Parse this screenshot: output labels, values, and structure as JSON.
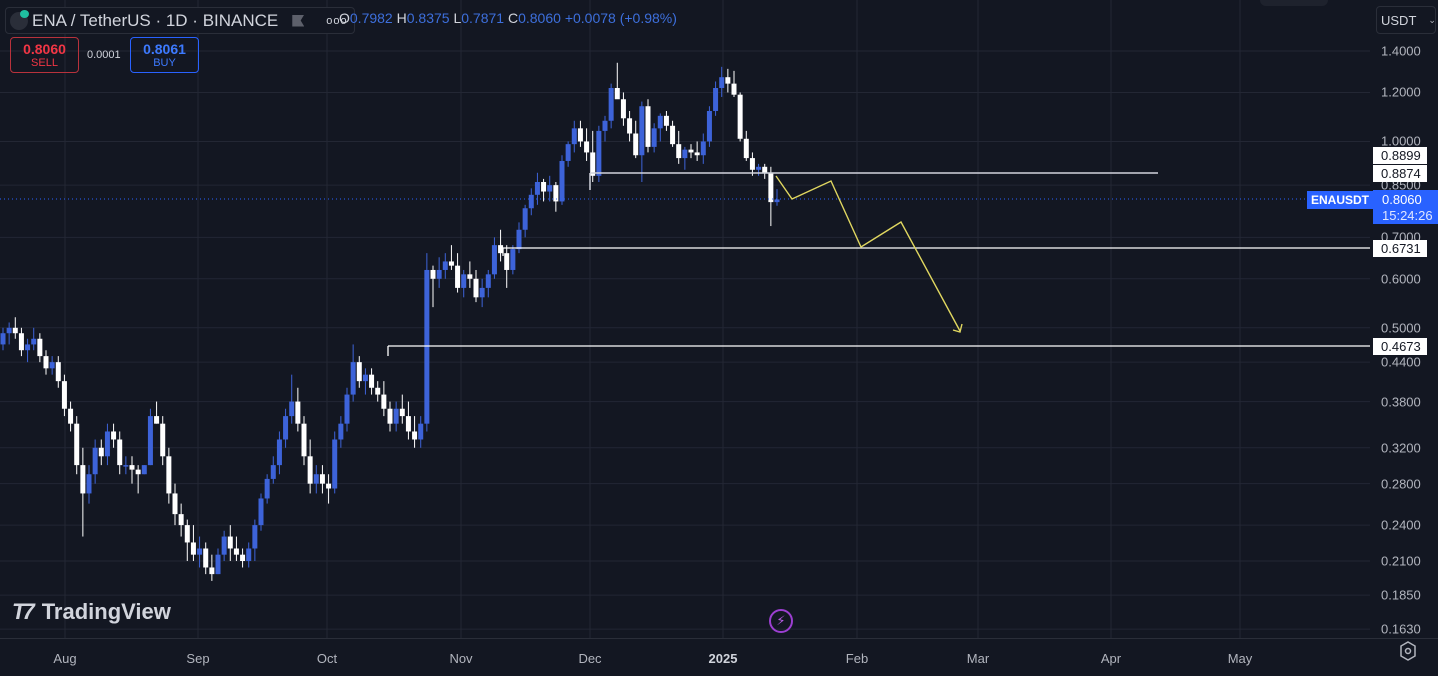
{
  "header": {
    "symbol_title": "ENA / TetherUS · 1D · BINANCE",
    "more_label": "ooo",
    "ohlc": {
      "o_label": "O",
      "o": "0.7982",
      "h_label": "H",
      "h": "0.8375",
      "l_label": "L",
      "l": "0.7871",
      "c_label": "C",
      "c": "0.8060",
      "change": "+0.0078 (+0.98%)"
    }
  },
  "trade": {
    "sell_price": "0.8060",
    "sell_label": "SELL",
    "spread": "0.0001",
    "buy_price": "0.8061",
    "buy_label": "BUY"
  },
  "currency_select": {
    "value": "USDT"
  },
  "price_labels": {
    "level_1": "0.8899",
    "level_2": "0.8874",
    "level_3": "0.6731",
    "level_4": "0.4673",
    "symbol_tag": "ENAUSDT",
    "last_price": "0.8060",
    "countdown": "15:24:26"
  },
  "watermark": "TradingView",
  "colors": {
    "up": "#3d63d9",
    "down": "#ffffff",
    "background": "#131722",
    "grid": "#232734",
    "projection": "#e0d760",
    "last_price": "#2962ff"
  },
  "chart_data": {
    "type": "candlestick",
    "title": "ENA / TetherUS · 1D · BINANCE",
    "scale": "log",
    "ylim": [
      0.163,
      1.4
    ],
    "y_ticks": [
      "1.4000",
      "1.2000",
      "1.0000",
      "0.8500",
      "0.7000",
      "0.6000",
      "0.5000",
      "0.4400",
      "0.3800",
      "0.3200",
      "0.2800",
      "0.2400",
      "0.2100",
      "0.1850",
      "0.1630"
    ],
    "x_ticks": [
      "Aug",
      "Sep",
      "Oct",
      "Nov",
      "Dec",
      "2025",
      "Feb",
      "Mar",
      "Apr",
      "May"
    ],
    "horizontal_levels": [
      {
        "price": 0.8874,
        "label": "0.8874",
        "from": "2024-11-30"
      },
      {
        "price": 0.6731,
        "label": "0.6731",
        "from": "2024-11-10"
      },
      {
        "price": 0.4673,
        "label": "0.4673",
        "from": "2024-10-14"
      }
    ],
    "projection_path": [
      [
        0.8874,
        "2025-01-14"
      ],
      [
        0.8,
        "2025-01-17"
      ],
      [
        0.86,
        "2025-01-26"
      ],
      [
        0.67,
        "2025-02-01"
      ],
      [
        0.73,
        "2025-02-10"
      ],
      [
        0.49,
        "2025-02-26"
      ]
    ],
    "candles": [
      [
        0.47,
        0.5,
        0.46,
        0.49
      ],
      [
        0.49,
        0.51,
        0.47,
        0.5
      ],
      [
        0.5,
        0.52,
        0.48,
        0.49
      ],
      [
        0.49,
        0.5,
        0.45,
        0.46
      ],
      [
        0.46,
        0.48,
        0.44,
        0.47
      ],
      [
        0.47,
        0.5,
        0.46,
        0.48
      ],
      [
        0.48,
        0.49,
        0.44,
        0.45
      ],
      [
        0.45,
        0.46,
        0.42,
        0.43
      ],
      [
        0.43,
        0.45,
        0.42,
        0.44
      ],
      [
        0.44,
        0.45,
        0.4,
        0.41
      ],
      [
        0.41,
        0.42,
        0.36,
        0.37
      ],
      [
        0.37,
        0.38,
        0.34,
        0.35
      ],
      [
        0.35,
        0.36,
        0.29,
        0.3
      ],
      [
        0.3,
        0.32,
        0.23,
        0.27
      ],
      [
        0.27,
        0.3,
        0.26,
        0.29
      ],
      [
        0.29,
        0.33,
        0.28,
        0.32
      ],
      [
        0.32,
        0.33,
        0.3,
        0.31
      ],
      [
        0.31,
        0.35,
        0.3,
        0.34
      ],
      [
        0.34,
        0.35,
        0.32,
        0.33
      ],
      [
        0.33,
        0.34,
        0.29,
        0.3
      ],
      [
        0.3,
        0.31,
        0.29,
        0.3
      ],
      [
        0.3,
        0.31,
        0.28,
        0.295
      ],
      [
        0.295,
        0.3,
        0.27,
        0.29
      ],
      [
        0.29,
        0.3,
        0.29,
        0.3
      ],
      [
        0.3,
        0.37,
        0.3,
        0.36
      ],
      [
        0.36,
        0.38,
        0.35,
        0.35
      ],
      [
        0.35,
        0.36,
        0.3,
        0.31
      ],
      [
        0.31,
        0.32,
        0.26,
        0.27
      ],
      [
        0.27,
        0.28,
        0.24,
        0.25
      ],
      [
        0.25,
        0.26,
        0.23,
        0.24
      ],
      [
        0.24,
        0.245,
        0.21,
        0.225
      ],
      [
        0.225,
        0.24,
        0.21,
        0.215
      ],
      [
        0.215,
        0.23,
        0.205,
        0.22
      ],
      [
        0.22,
        0.225,
        0.2,
        0.205
      ],
      [
        0.205,
        0.215,
        0.195,
        0.2
      ],
      [
        0.2,
        0.22,
        0.2,
        0.215
      ],
      [
        0.215,
        0.235,
        0.21,
        0.23
      ],
      [
        0.23,
        0.24,
        0.21,
        0.22
      ],
      [
        0.22,
        0.23,
        0.21,
        0.215
      ],
      [
        0.215,
        0.22,
        0.205,
        0.21
      ],
      [
        0.21,
        0.225,
        0.205,
        0.22
      ],
      [
        0.22,
        0.245,
        0.21,
        0.24
      ],
      [
        0.24,
        0.27,
        0.235,
        0.265
      ],
      [
        0.265,
        0.29,
        0.26,
        0.285
      ],
      [
        0.285,
        0.31,
        0.28,
        0.3
      ],
      [
        0.3,
        0.34,
        0.29,
        0.33
      ],
      [
        0.33,
        0.37,
        0.32,
        0.36
      ],
      [
        0.36,
        0.42,
        0.35,
        0.38
      ],
      [
        0.38,
        0.4,
        0.34,
        0.35
      ],
      [
        0.35,
        0.36,
        0.3,
        0.31
      ],
      [
        0.31,
        0.33,
        0.27,
        0.28
      ],
      [
        0.28,
        0.3,
        0.27,
        0.29
      ],
      [
        0.29,
        0.3,
        0.27,
        0.28
      ],
      [
        0.28,
        0.29,
        0.26,
        0.275
      ],
      [
        0.275,
        0.34,
        0.27,
        0.33
      ],
      [
        0.33,
        0.36,
        0.32,
        0.35
      ],
      [
        0.35,
        0.4,
        0.34,
        0.39
      ],
      [
        0.39,
        0.47,
        0.38,
        0.44
      ],
      [
        0.44,
        0.45,
        0.4,
        0.41
      ],
      [
        0.41,
        0.43,
        0.39,
        0.42
      ],
      [
        0.42,
        0.43,
        0.39,
        0.4
      ],
      [
        0.4,
        0.41,
        0.38,
        0.39
      ],
      [
        0.39,
        0.41,
        0.36,
        0.37
      ],
      [
        0.37,
        0.38,
        0.34,
        0.35
      ],
      [
        0.35,
        0.38,
        0.34,
        0.37
      ],
      [
        0.37,
        0.39,
        0.35,
        0.36
      ],
      [
        0.36,
        0.38,
        0.33,
        0.34
      ],
      [
        0.34,
        0.36,
        0.32,
        0.33
      ],
      [
        0.33,
        0.36,
        0.32,
        0.35
      ],
      [
        0.35,
        0.66,
        0.34,
        0.62
      ],
      [
        0.62,
        0.63,
        0.54,
        0.6
      ],
      [
        0.6,
        0.65,
        0.58,
        0.62
      ],
      [
        0.62,
        0.66,
        0.6,
        0.64
      ],
      [
        0.64,
        0.68,
        0.62,
        0.63
      ],
      [
        0.63,
        0.66,
        0.57,
        0.58
      ],
      [
        0.58,
        0.62,
        0.56,
        0.61
      ],
      [
        0.61,
        0.64,
        0.58,
        0.6
      ],
      [
        0.6,
        0.62,
        0.55,
        0.56
      ],
      [
        0.56,
        0.6,
        0.54,
        0.58
      ],
      [
        0.58,
        0.62,
        0.56,
        0.61
      ],
      [
        0.61,
        0.7,
        0.6,
        0.68
      ],
      [
        0.68,
        0.72,
        0.64,
        0.66
      ],
      [
        0.66,
        0.68,
        0.58,
        0.62
      ],
      [
        0.62,
        0.68,
        0.61,
        0.67
      ],
      [
        0.67,
        0.74,
        0.66,
        0.72
      ],
      [
        0.72,
        0.79,
        0.7,
        0.78
      ],
      [
        0.78,
        0.84,
        0.76,
        0.82
      ],
      [
        0.82,
        0.89,
        0.79,
        0.86
      ],
      [
        0.86,
        0.87,
        0.8,
        0.83
      ],
      [
        0.83,
        0.88,
        0.8,
        0.85
      ],
      [
        0.85,
        0.86,
        0.77,
        0.8
      ],
      [
        0.8,
        0.95,
        0.79,
        0.93
      ],
      [
        0.93,
        1.0,
        0.91,
        0.99
      ],
      [
        0.99,
        1.08,
        0.96,
        1.05
      ],
      [
        1.05,
        1.08,
        0.98,
        1.0
      ],
      [
        1.0,
        1.05,
        0.93,
        0.96
      ],
      [
        0.96,
        1.04,
        0.86,
        0.88
      ],
      [
        0.88,
        1.06,
        0.86,
        1.04
      ],
      [
        1.04,
        1.1,
        1.0,
        1.08
      ],
      [
        1.08,
        1.24,
        1.05,
        1.22
      ],
      [
        1.22,
        1.34,
        1.18,
        1.17
      ],
      [
        1.17,
        1.2,
        1.06,
        1.09
      ],
      [
        1.09,
        1.12,
        1.0,
        1.03
      ],
      [
        1.03,
        1.08,
        0.94,
        0.95
      ],
      [
        0.95,
        1.16,
        0.86,
        1.14
      ],
      [
        1.14,
        1.17,
        0.96,
        0.98
      ],
      [
        0.98,
        1.07,
        0.96,
        1.05
      ],
      [
        1.05,
        1.11,
        1.0,
        1.1
      ],
      [
        1.1,
        1.12,
        1.04,
        1.06
      ],
      [
        1.06,
        1.08,
        0.98,
        0.99
      ],
      [
        0.99,
        1.04,
        0.92,
        0.94
      ],
      [
        0.94,
        0.98,
        0.9,
        0.97
      ],
      [
        0.97,
        0.99,
        0.94,
        0.96
      ],
      [
        0.96,
        1.0,
        0.93,
        0.95
      ],
      [
        0.95,
        1.03,
        0.92,
        1.0
      ],
      [
        1.0,
        1.14,
        0.98,
        1.12
      ],
      [
        1.12,
        1.25,
        1.1,
        1.22
      ],
      [
        1.22,
        1.32,
        1.18,
        1.27
      ],
      [
        1.27,
        1.31,
        1.2,
        1.24
      ],
      [
        1.24,
        1.3,
        1.18,
        1.19
      ],
      [
        1.19,
        1.2,
        1.0,
        1.01
      ],
      [
        1.01,
        1.04,
        0.93,
        0.94
      ],
      [
        0.94,
        0.96,
        0.88,
        0.9
      ],
      [
        0.9,
        0.92,
        0.88,
        0.91
      ],
      [
        0.91,
        0.92,
        0.87,
        0.89
      ],
      [
        0.89,
        0.91,
        0.73,
        0.798
      ],
      [
        0.798,
        0.8375,
        0.7871,
        0.806
      ]
    ]
  }
}
